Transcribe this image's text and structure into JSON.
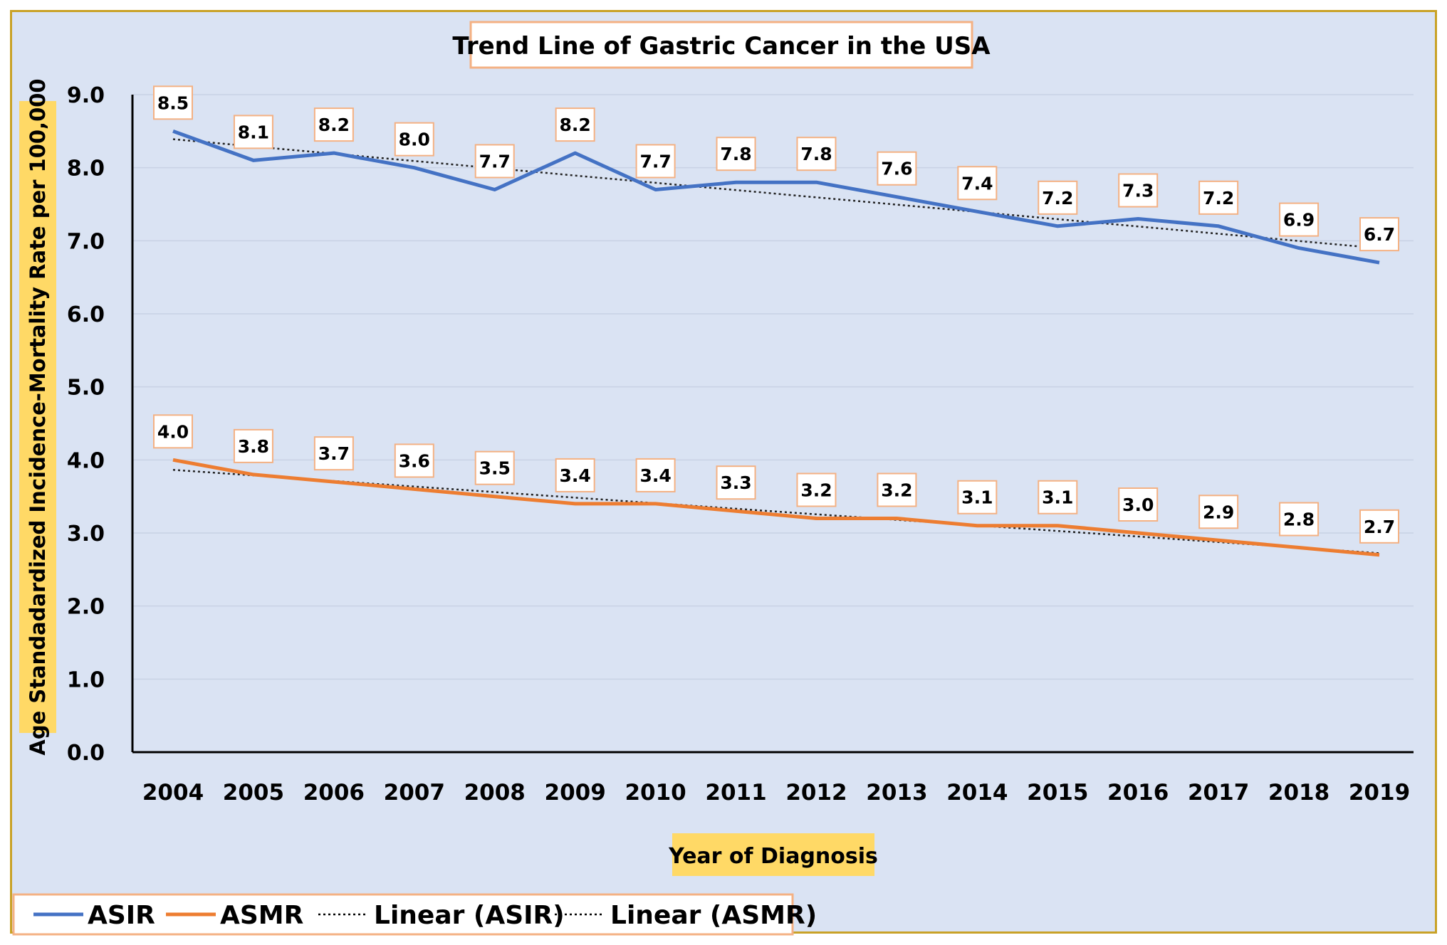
{
  "chart_data": {
    "type": "line",
    "title": "Trend Line of Gastric Cancer in the USA",
    "xlabel": "Year of Diagnosis",
    "ylabel": "Age Standadardized Incidence-Mortality Rate per 100,000",
    "ylim": [
      0,
      9
    ],
    "yticks": [
      "0.0",
      "1.0",
      "2.0",
      "3.0",
      "4.0",
      "5.0",
      "6.0",
      "7.0",
      "8.0",
      "9.0"
    ],
    "categories": [
      "2004",
      "2005",
      "2006",
      "2007",
      "2008",
      "2009",
      "2010",
      "2011",
      "2012",
      "2013",
      "2014",
      "2015",
      "2016",
      "2017",
      "2018",
      "2019"
    ],
    "series": [
      {
        "name": "ASIR",
        "color": "#4472c4",
        "values": [
          8.5,
          8.1,
          8.2,
          8.0,
          7.7,
          8.2,
          7.7,
          7.8,
          7.8,
          7.6,
          7.4,
          7.2,
          7.3,
          7.2,
          6.9,
          6.7
        ]
      },
      {
        "name": "ASMR",
        "color": "#ed7d31",
        "values": [
          4.0,
          3.8,
          3.7,
          3.6,
          3.5,
          3.4,
          3.4,
          3.3,
          3.2,
          3.2,
          3.1,
          3.1,
          3.0,
          2.9,
          2.8,
          2.7
        ]
      }
    ],
    "trendlines": [
      {
        "name": "Linear (ASIR)",
        "of": "ASIR",
        "style": "dotted"
      },
      {
        "name": "Linear (ASMR)",
        "of": "ASMR",
        "style": "dotted"
      }
    ],
    "grid": true,
    "legend": "bottom-left",
    "data_labels": true
  }
}
